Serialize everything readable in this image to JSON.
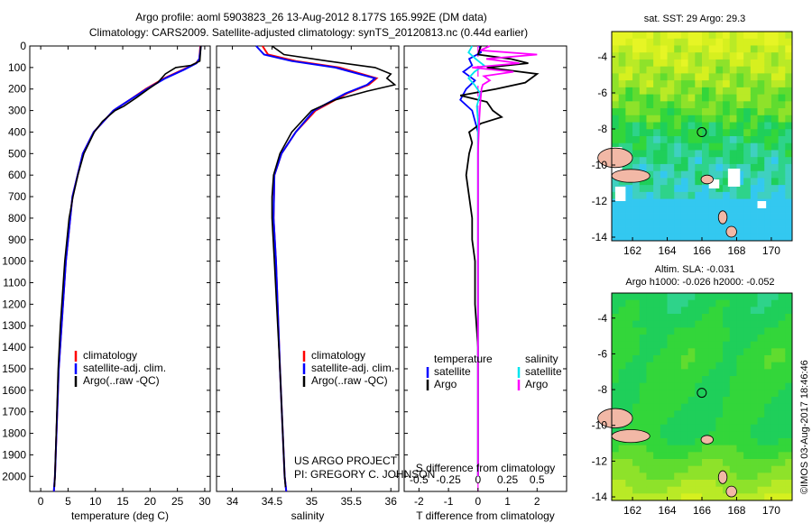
{
  "header": {
    "line1": "Argo profile: aoml 5903823_26 13-Aug-2012 8.177S 165.992E (DM data)",
    "line2": "Climatology: CARS2009. Satellite-adjusted climatology: synTS_20120813.nc (0.44d earlier)"
  },
  "colors": {
    "climatology": "#ff0000",
    "satellite": "#0000ff",
    "argo": "#000000",
    "sat_salinity": "#00e5ee",
    "argo_salinity": "#ff00ff"
  },
  "footer": {
    "project": "US ARGO PROJECT",
    "pi": "PI: GREGORY C. JOHNSON",
    "stamp": "©IMOS 03-Aug-2017 18:46:46"
  },
  "chart_data": [
    {
      "type": "line",
      "id": "temperature",
      "xlabel": "temperature (deg C)",
      "xlim": [
        -2,
        31
      ],
      "ylim": [
        2070,
        0
      ],
      "xticks": [
        0,
        5,
        10,
        15,
        20,
        25,
        30
      ],
      "yticks": [
        0,
        100,
        200,
        300,
        400,
        500,
        600,
        700,
        800,
        900,
        1000,
        1100,
        1200,
        1300,
        1400,
        1500,
        1600,
        1700,
        1800,
        1900,
        2000
      ],
      "legend": [
        "climatology",
        "satellite-adj. clim.",
        "Argo(..raw -QC)"
      ],
      "legend_position": "lower-center",
      "series": [
        {
          "name": "climatology",
          "color": "#ff0000",
          "depth": [
            0,
            60,
            80,
            110,
            150,
            200,
            250,
            300,
            400,
            500,
            700,
            1000,
            1500,
            2000,
            2070
          ],
          "values": [
            29.2,
            29.0,
            28.4,
            26.0,
            22.6,
            19.2,
            16.3,
            13.3,
            9.7,
            7.7,
            5.8,
            4.6,
            3.3,
            2.6,
            2.4
          ]
        },
        {
          "name": "satellite-adj. clim.",
          "color": "#0000ff",
          "depth": [
            0,
            60,
            80,
            110,
            150,
            200,
            250,
            300,
            400,
            500,
            700,
            1000,
            1500,
            2000,
            2070
          ],
          "values": [
            29.3,
            29.0,
            28.5,
            26.2,
            22.8,
            19.4,
            16.3,
            13.3,
            9.7,
            7.7,
            5.8,
            4.6,
            3.3,
            2.6,
            2.4
          ]
        },
        {
          "name": "Argo(..raw -QC)",
          "color": "#000000",
          "depth": [
            0,
            70,
            90,
            100,
            130,
            170,
            200,
            240,
            280,
            300,
            350,
            400,
            500,
            600,
            700,
            800,
            1000,
            1300,
            1500,
            2000,
            2050
          ],
          "values": [
            29.3,
            29.1,
            27.5,
            24.7,
            22.8,
            21.4,
            19.7,
            17.5,
            15.2,
            13.6,
            11.3,
            9.8,
            7.9,
            6.8,
            5.9,
            5.2,
            4.4,
            3.6,
            3.2,
            2.6,
            2.5
          ]
        }
      ]
    },
    {
      "type": "line",
      "id": "salinity",
      "xlabel": "salinity",
      "xlim": [
        33.8,
        36.1
      ],
      "ylim": [
        2070,
        0
      ],
      "xticks": [
        34,
        34.5,
        35,
        35.5,
        36
      ],
      "legend": [
        "climatology",
        "satellite-adj. clim.",
        "Argo(..raw -QC)"
      ],
      "legend_position": "lower-center",
      "series": [
        {
          "name": "climatology",
          "color": "#ff0000",
          "depth": [
            0,
            40,
            70,
            100,
            150,
            180,
            220,
            300,
            400,
            500,
            600,
            800,
            1000,
            1500,
            2000,
            2070
          ],
          "values": [
            34.38,
            34.45,
            34.8,
            35.35,
            35.82,
            35.72,
            35.45,
            35.05,
            34.8,
            34.62,
            34.53,
            34.52,
            34.55,
            34.6,
            34.66,
            34.68
          ]
        },
        {
          "name": "satellite-adj. clim.",
          "color": "#0000ff",
          "depth": [
            0,
            40,
            70,
            100,
            150,
            180,
            220,
            300,
            400,
            500,
            600,
            800,
            1000,
            1500,
            2000,
            2070
          ],
          "values": [
            34.3,
            34.4,
            34.75,
            35.3,
            35.8,
            35.7,
            35.43,
            35.03,
            34.8,
            34.62,
            34.53,
            34.52,
            34.55,
            34.6,
            34.66,
            34.68
          ]
        },
        {
          "name": "Argo(..raw -QC)",
          "color": "#000000",
          "depth": [
            0,
            40,
            70,
            100,
            130,
            150,
            180,
            210,
            250,
            300,
            400,
            500,
            600,
            700,
            800,
            1000,
            1500,
            2000,
            2050
          ],
          "values": [
            34.5,
            34.65,
            35.2,
            35.8,
            36.0,
            35.95,
            36.05,
            35.7,
            35.3,
            35.0,
            34.75,
            34.6,
            34.52,
            34.5,
            34.5,
            34.53,
            34.6,
            34.66,
            34.67
          ]
        }
      ]
    },
    {
      "type": "line",
      "id": "differences",
      "xlabel": "T difference from climatology",
      "xlabel_top": "S difference from climatology",
      "xlim": [
        -2.5,
        3
      ],
      "ylim": [
        2070,
        0
      ],
      "xticks": [
        -2,
        -1,
        0,
        1,
        2
      ],
      "xlim_s": [
        -0.625,
        0.75
      ],
      "xticks_s": [
        -0.5,
        -0.25,
        0,
        0.25,
        0.5
      ],
      "legend_groups": [
        {
          "title": "temperature",
          "items": [
            "satellite",
            "Argo"
          ]
        },
        {
          "title": "salinity",
          "items": [
            "satellite",
            "Argo"
          ]
        }
      ],
      "series": [
        {
          "name": "temperature satellite",
          "color": "#0000ff",
          "depth": [
            0,
            30,
            60,
            90,
            120,
            160,
            200,
            250,
            300,
            400,
            500,
            1000,
            2000
          ],
          "values": [
            0.05,
            0.1,
            -0.3,
            -0.2,
            -0.5,
            -0.1,
            -0.4,
            -0.6,
            -0.2,
            0.0,
            0.0,
            0.0,
            0.0
          ]
        },
        {
          "name": "temperature Argo",
          "color": "#000000",
          "depth": [
            0,
            40,
            60,
            80,
            100,
            130,
            170,
            200,
            230,
            260,
            300,
            330,
            360,
            400,
            450,
            500,
            600,
            700,
            800,
            900,
            1000,
            1200,
            1400,
            1600,
            1800,
            2000
          ],
          "values": [
            0.1,
            0.0,
            1.1,
            1.7,
            0.3,
            2.0,
            1.6,
            0.6,
            -0.6,
            0.3,
            0.5,
            0.8,
            0.1,
            -0.3,
            -0.2,
            -0.3,
            -0.4,
            -0.3,
            -0.2,
            -0.2,
            -0.1,
            -0.1,
            0.0,
            0.0,
            0.0,
            0.0
          ]
        },
        {
          "name": "salinity satellite",
          "color": "#00e5ee",
          "depth": [
            0,
            30,
            60,
            90,
            120,
            150,
            180,
            220,
            280,
            350,
            500,
            1000,
            2000
          ],
          "values": [
            -0.05,
            -0.08,
            -0.02,
            0.05,
            -0.03,
            -0.08,
            -0.03,
            0.02,
            -0.01,
            0.0,
            0.0,
            0.0,
            0.0
          ]
        },
        {
          "name": "salinity Argo",
          "color": "#ff00ff",
          "depth": [
            0,
            20,
            40,
            60,
            80,
            100,
            120,
            140,
            160,
            180,
            200,
            260,
            350,
            500,
            1000,
            2000
          ],
          "values": [
            0.1,
            0.02,
            0.5,
            0.07,
            0.35,
            -0.05,
            0.3,
            0.05,
            0.1,
            0.04,
            0.03,
            0.02,
            0.01,
            0.0,
            0.0,
            0.0
          ]
        }
      ]
    },
    {
      "type": "heatmap",
      "id": "sst_map",
      "title": "sat. SST: 29 Argo: 29.3",
      "xlim": [
        160.8,
        171.2
      ],
      "ylim": [
        -14.2,
        -2.6
      ],
      "xticks": [
        162,
        164,
        166,
        168,
        170
      ],
      "yticks": [
        -4,
        -6,
        -8,
        -10,
        -12,
        -14
      ],
      "marker": {
        "lon": 165.992,
        "lat": -8.177
      }
    },
    {
      "type": "heatmap",
      "id": "sla_map",
      "title": "Altim. SLA: -0.031",
      "subtitle": "Argo h1000: -0.026 h2000: -0.052",
      "xlim": [
        160.8,
        171.2
      ],
      "ylim": [
        -14.2,
        -2.6
      ],
      "xticks": [
        162,
        164,
        166,
        168,
        170
      ],
      "yticks": [
        -4,
        -6,
        -8,
        -10,
        -12,
        -14
      ],
      "marker": {
        "lon": 165.992,
        "lat": -8.177
      }
    }
  ]
}
